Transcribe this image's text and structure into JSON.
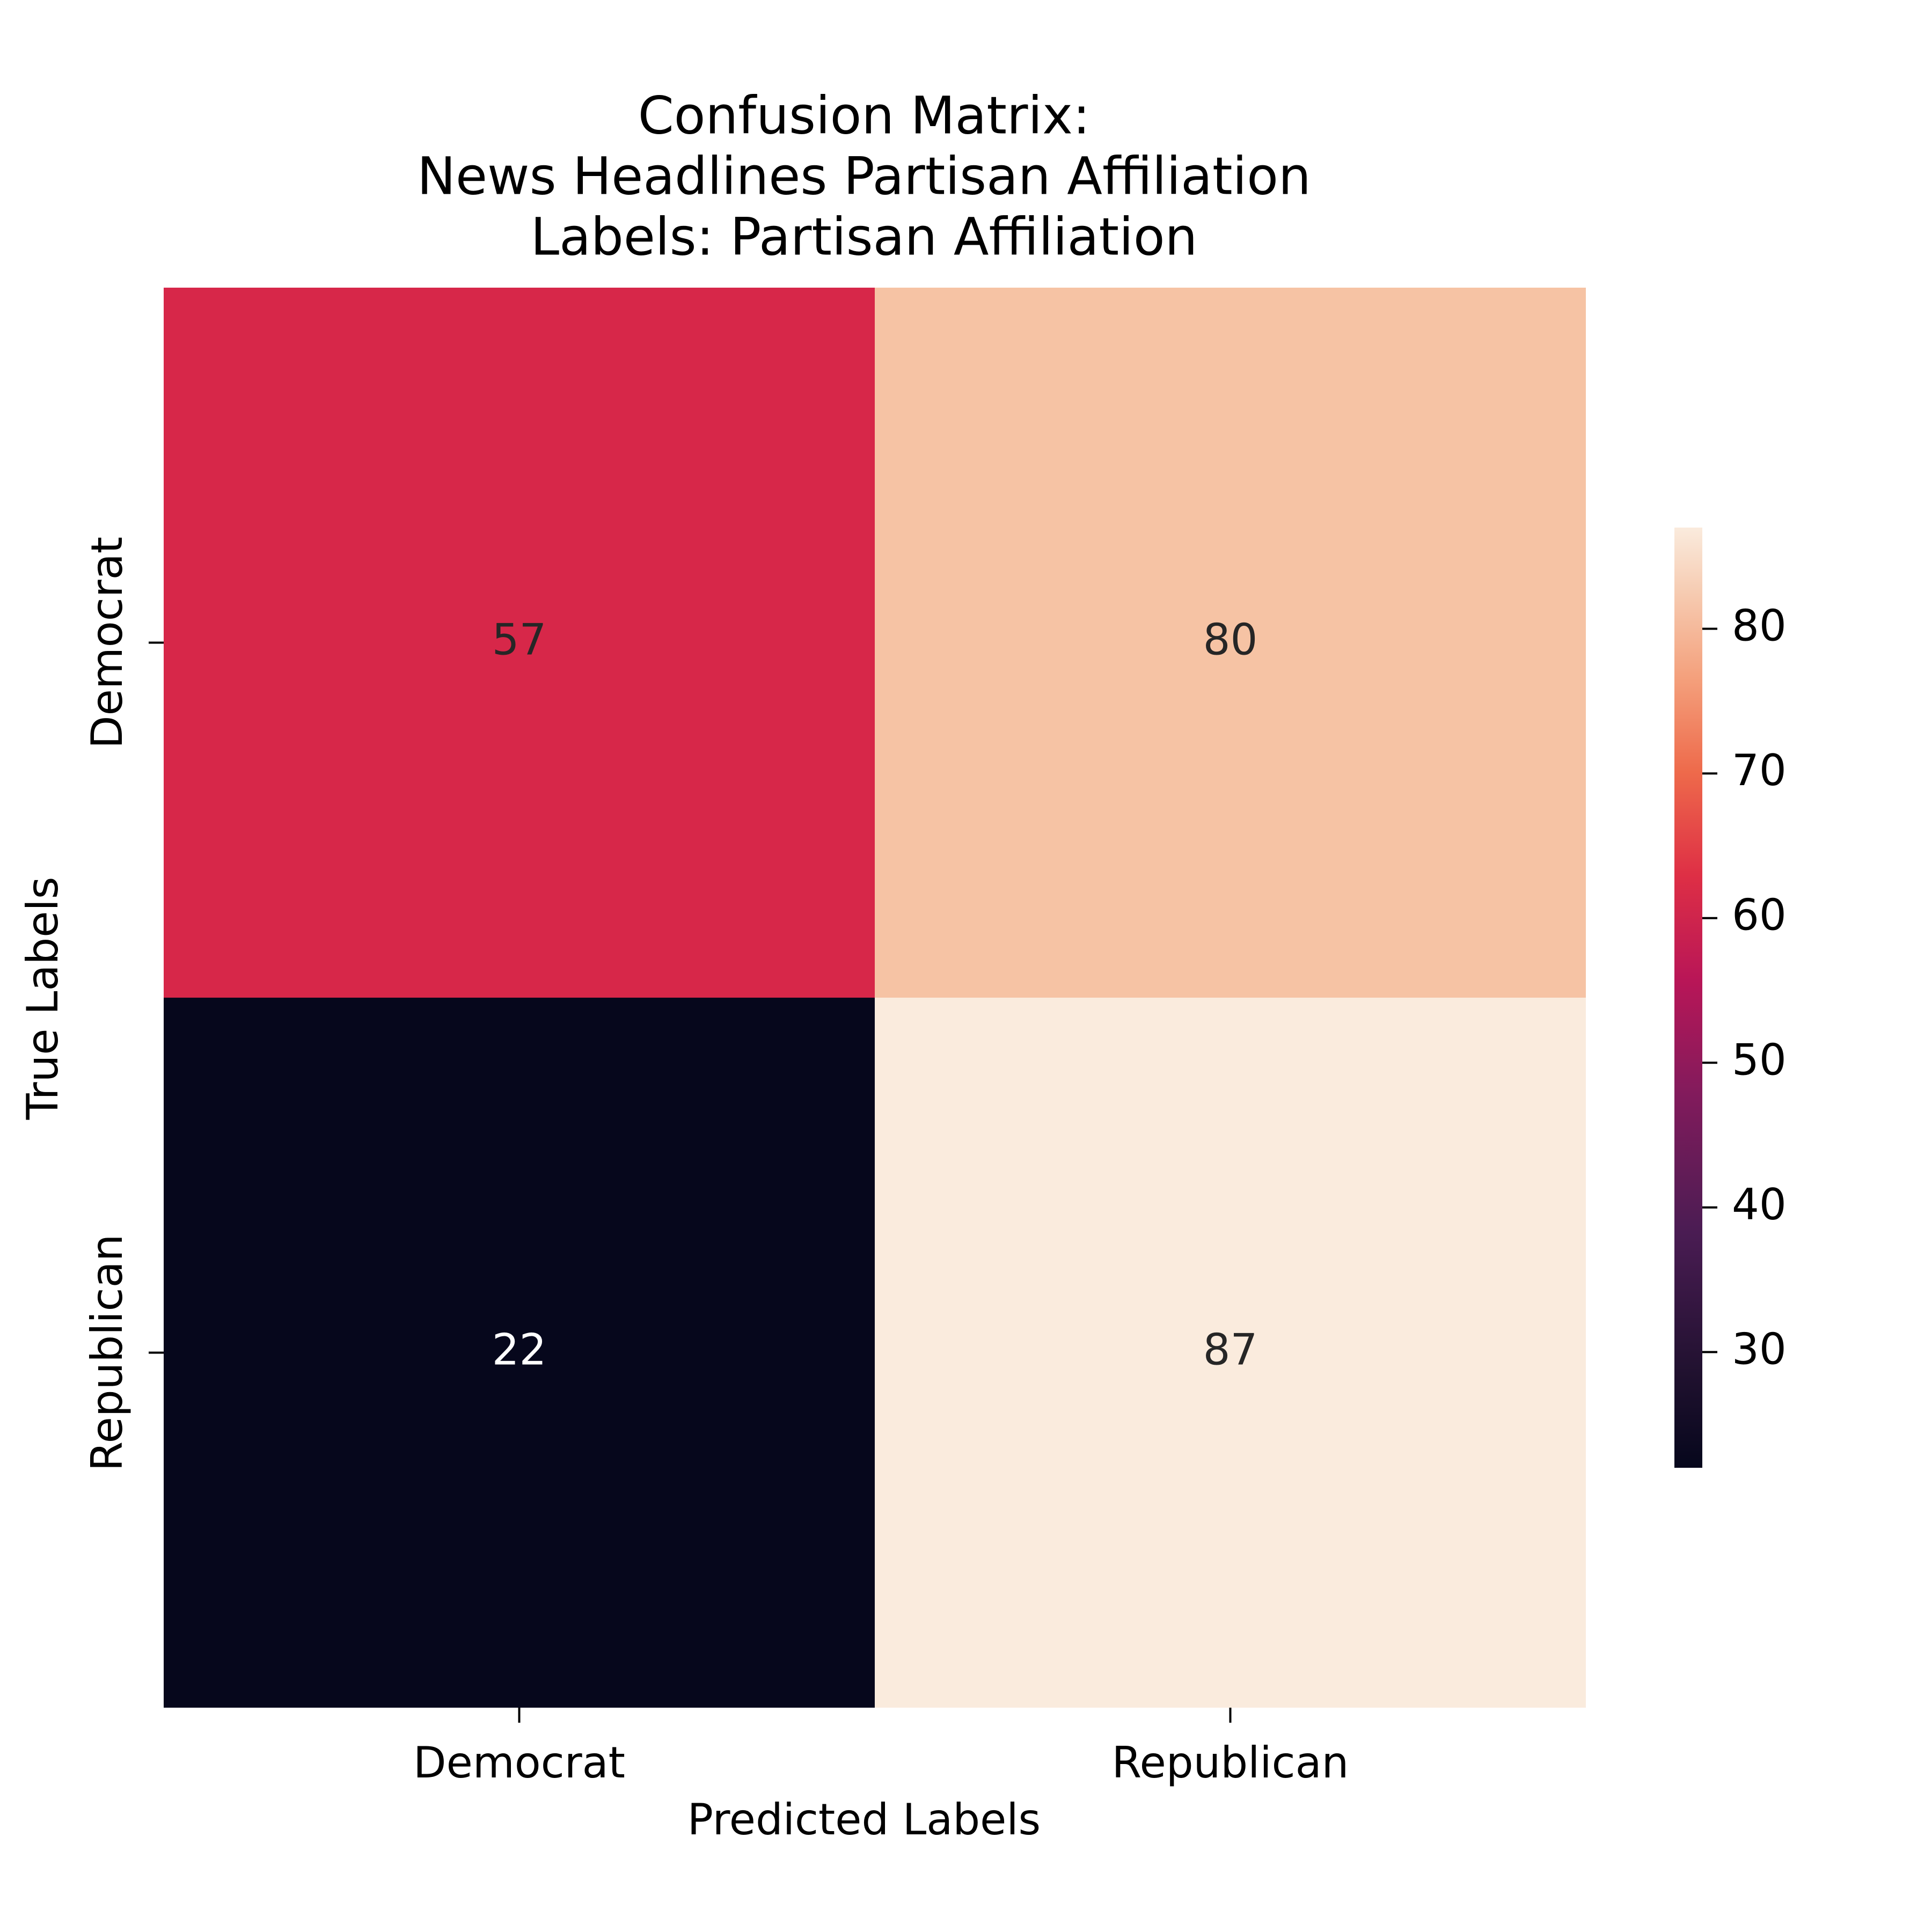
{
  "chart_data": {
    "type": "heatmap",
    "title_lines": [
      "Confusion Matrix:",
      "News Headlines Partisan Affiliation",
      "Labels: Partisan Affiliation"
    ],
    "xlabel": "Predicted Labels",
    "ylabel": "True Labels",
    "x_categories": [
      "Democrat",
      "Republican"
    ],
    "y_categories": [
      "Democrat",
      "Republican"
    ],
    "values": [
      [
        57,
        80
      ],
      [
        22,
        87
      ]
    ],
    "colormap": "rocket",
    "colorbar": {
      "min": 22,
      "max": 87,
      "ticks": [
        30,
        40,
        50,
        60,
        70,
        80
      ]
    },
    "colors": {
      "cell_57": "#d72749",
      "cell_80": "#f6c3a4",
      "cell_22": "#06071c",
      "cell_87": "#faebdd",
      "annotation_on_dark": "#ffffff",
      "annotation_on_light": "#262626"
    }
  }
}
